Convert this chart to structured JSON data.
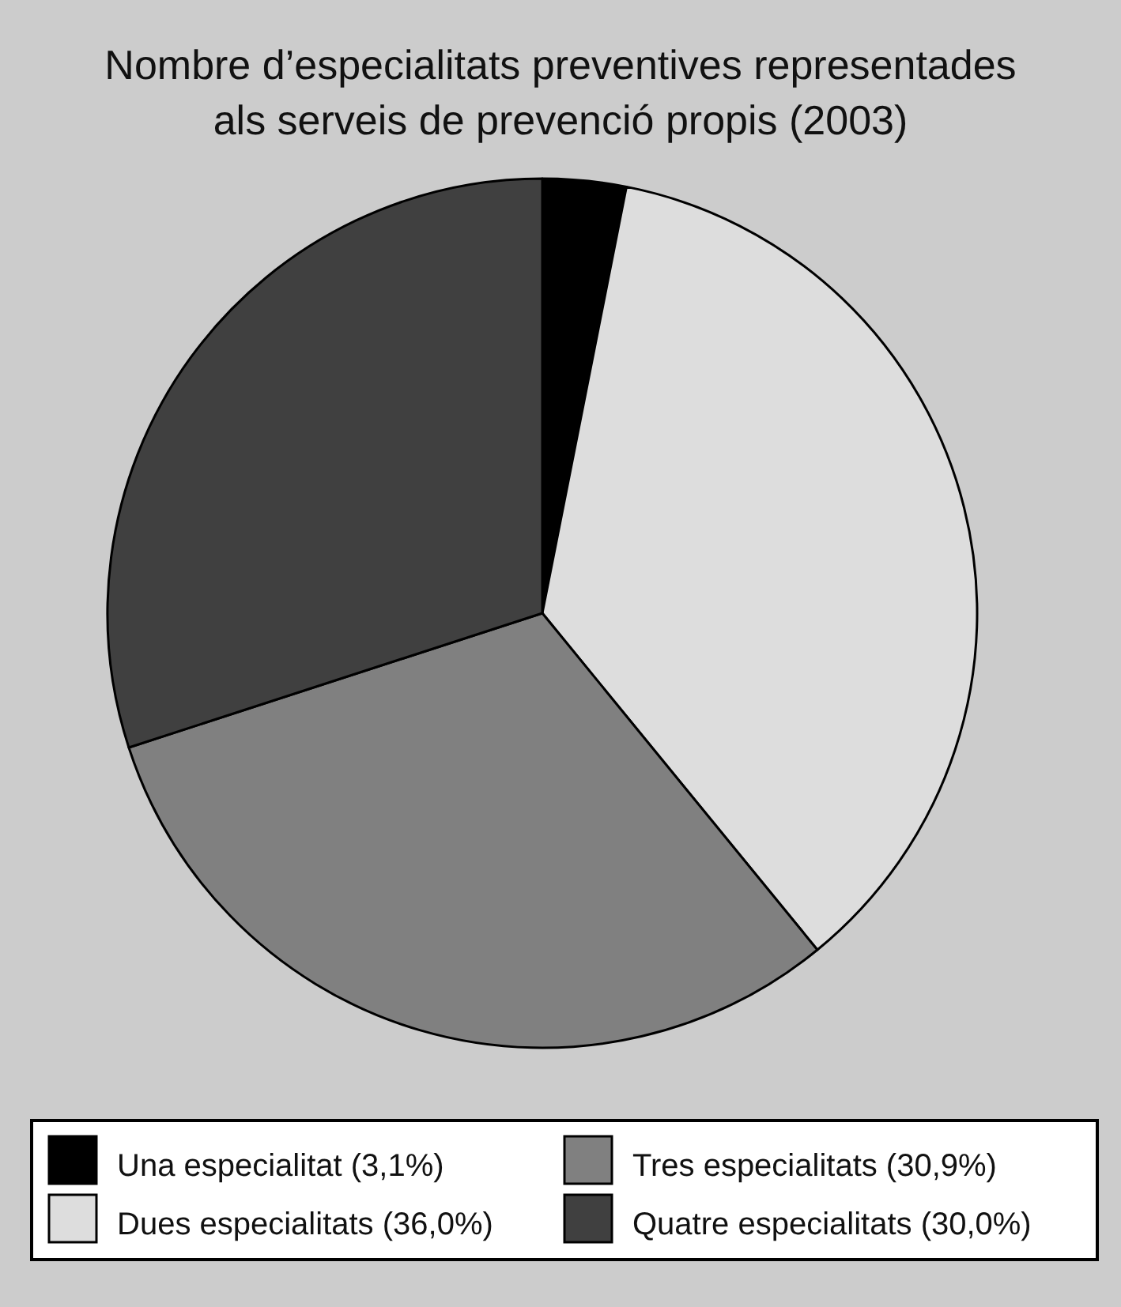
{
  "chart_data": {
    "type": "pie",
    "title": "Nombre d’especialitats preventives representades\nals serveis de prevenció propis (2003)",
    "categories": [
      "Una especialitat (3,1%)",
      "Dues especialitats (36,0%)",
      "Tres especialitats (30,9%)",
      "Quatre especialitats (30,0%)"
    ],
    "values": [
      3.1,
      36.0,
      30.9,
      30.0
    ],
    "colors": [
      "#000000",
      "#dddddd",
      "#808080",
      "#404040"
    ],
    "legend": "bottom"
  }
}
